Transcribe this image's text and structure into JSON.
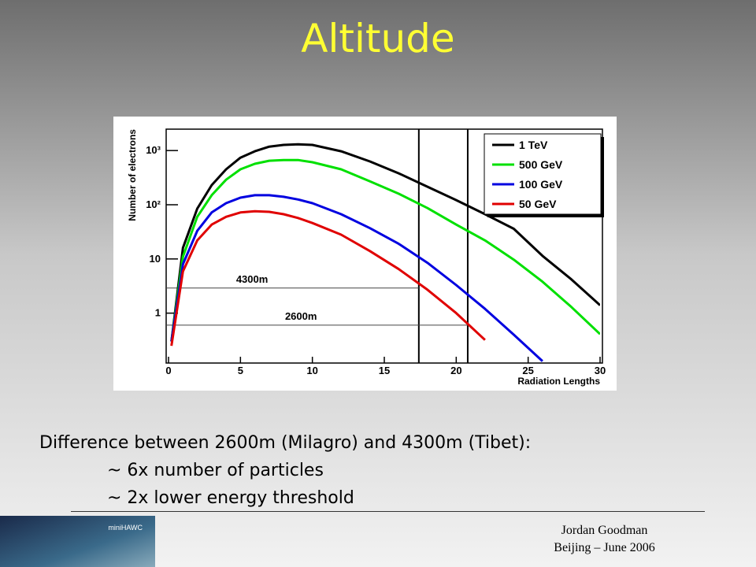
{
  "title": "Altitude",
  "body": {
    "heading": "Difference between 2600m (Milagro) and 4300m (Tibet):",
    "bullets": [
      "~ 6x number of particles",
      "~ 2x lower energy threshold"
    ]
  },
  "logo": "miniHAWC",
  "footer": [
    "Jordan Goodman",
    "Beijing – June 2006"
  ],
  "chart_data": {
    "type": "line",
    "x_label": "Radiation Lengths",
    "y_label": "Number of electrons",
    "log_y": true,
    "legend": "upper right",
    "xlim": [
      0,
      30
    ],
    "xticks": [
      0,
      5,
      10,
      15,
      20,
      25,
      30
    ],
    "ylim": [
      0.12,
      1900
    ],
    "yticks": [
      1,
      10,
      {
        "value": 100,
        "label": "10²"
      },
      {
        "value": 1000,
        "label": "10³"
      }
    ],
    "x": [
      0.2,
      1,
      2,
      3,
      4,
      5,
      6,
      7,
      8,
      9,
      10,
      12,
      14,
      16,
      18,
      20,
      22,
      24,
      26,
      28,
      30
    ],
    "series": [
      {
        "name": "1 TeV",
        "color": "#000000",
        "values": [
          0.3,
          16,
          85,
          230,
          450,
          740,
          970,
          1180,
          1270,
          1300,
          1270,
          970,
          630,
          380,
          215,
          122,
          67,
          36,
          11.4,
          4.2,
          1.4
        ]
      },
      {
        "name": "500 GeV",
        "color": "#00e000",
        "values": [
          0.3,
          11,
          60,
          150,
          290,
          450,
          570,
          650,
          670,
          670,
          610,
          450,
          270,
          160,
          87,
          43,
          22,
          9.7,
          3.8,
          1.3,
          0.41
        ]
      },
      {
        "name": "100 GeV",
        "color": "#0000e0",
        "values": [
          0.3,
          8,
          33,
          72,
          107,
          135,
          150,
          150,
          140,
          125,
          107,
          67,
          37,
          19,
          8.5,
          3.3,
          1.2,
          0.4,
          0.13,
          null,
          null
        ]
      },
      {
        "name": "50 GeV",
        "color": "#e00000",
        "values": [
          0.25,
          5.9,
          22,
          43,
          60,
          72,
          76,
          74,
          67,
          57,
          46,
          28,
          14,
          6.5,
          2.7,
          1,
          0.32,
          null,
          null,
          null,
          null
        ]
      }
    ],
    "reference_lines": [
      {
        "label": "4300m",
        "x": 17.4,
        "y": 2.9
      },
      {
        "label": "2600m",
        "x": 20.8,
        "y": 0.6
      }
    ]
  }
}
